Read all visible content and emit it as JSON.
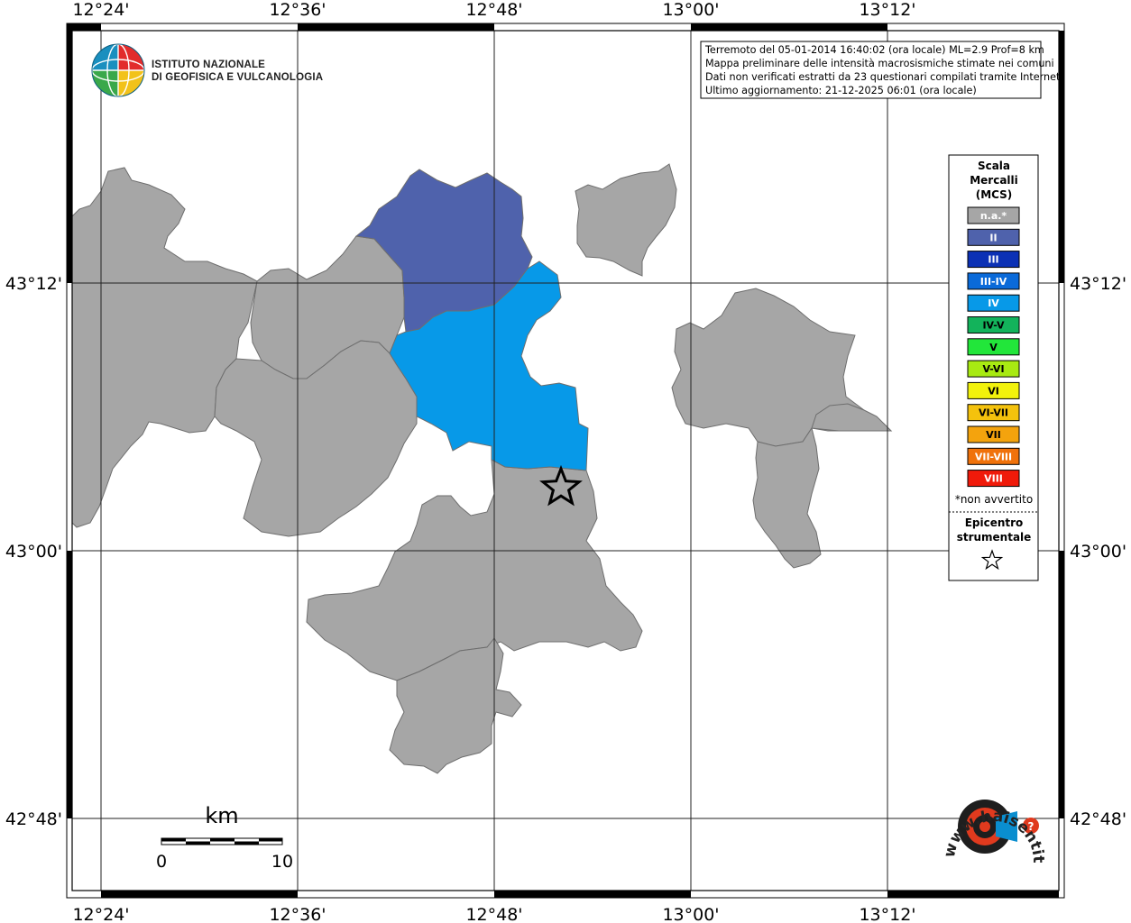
{
  "map": {
    "longitude_labels": [
      "12°24'",
      "12°36'",
      "12°48'",
      "13°00'",
      "13°12'"
    ],
    "latitude_labels": [
      "43°12'",
      "43°00'",
      "42°48'"
    ]
  },
  "institute": {
    "line1": "ISTITUTO NAZIONALE",
    "line2": "DI GEOFISICA E VULCANOLOGIA"
  },
  "info_box": {
    "line1": "Terremoto del 05-01-2014 16:40:02 (ora locale) ML=2.9 Prof=8 km",
    "line2": "Mappa preliminare delle intensità macrosismiche stimate nei comuni",
    "line3": "Dati non verificati estratti da 23 questionari compilati tramite Internet.",
    "line4": "Ultimo aggiornamento: 21-12-2025 06:01 (ora locale)"
  },
  "legend": {
    "title_line1": "Scala",
    "title_line2": "Mercalli",
    "title_line3": "(MCS)",
    "items": [
      {
        "label": "n.a.*",
        "color": "#a6a6a6"
      },
      {
        "label": "II",
        "color": "#4f62ac"
      },
      {
        "label": "III",
        "color": "#0c31b5"
      },
      {
        "label": "III-IV",
        "color": "#0a6ad9"
      },
      {
        "label": "IV",
        "color": "#0799e8"
      },
      {
        "label": "IV-V",
        "color": "#13b35b"
      },
      {
        "label": "V",
        "color": "#22e63a"
      },
      {
        "label": "V-VI",
        "color": "#a8ea12"
      },
      {
        "label": "VI",
        "color": "#f2f20c"
      },
      {
        "label": "VI-VII",
        "color": "#f4c20d"
      },
      {
        "label": "VII",
        "color": "#f4a30d"
      },
      {
        "label": "VII-VIII",
        "color": "#f0720b"
      },
      {
        "label": "VIII",
        "color": "#f01a0a"
      }
    ],
    "note": "*non avvertito",
    "epicenter_line1": "Epicentro",
    "epicenter_line2": "strumentale"
  },
  "scale_bar": {
    "unit": "km",
    "min_label": "0",
    "max_label": "10"
  },
  "web_logo": {
    "text": "www.haisentitoilterremoto.it"
  },
  "colors": {
    "gray": "#a6a6a6",
    "intensity_II": "#4f62ac",
    "intensity_IV": "#0799e8"
  }
}
